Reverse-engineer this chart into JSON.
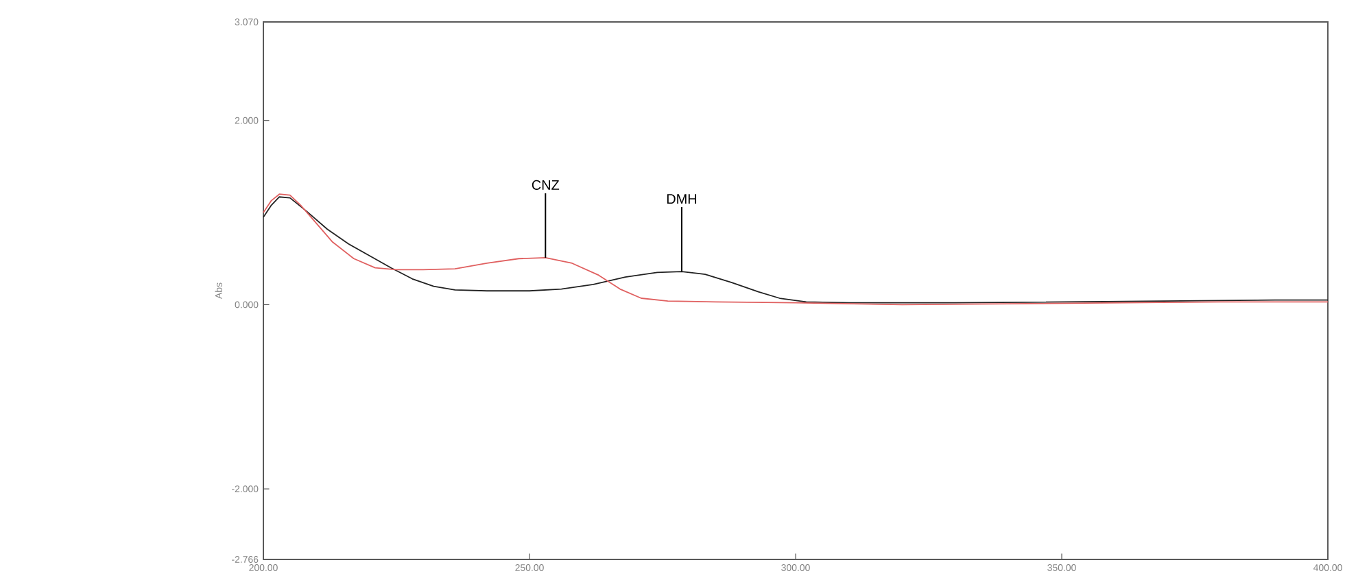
{
  "chart_data": {
    "type": "line",
    "ylabel": "Abs",
    "xlim": [
      200,
      400
    ],
    "ylim": [
      -2.766,
      3.07
    ],
    "xticks": [
      {
        "value": 200,
        "label": "200.00"
      },
      {
        "value": 250,
        "label": "250.00"
      },
      {
        "value": 300,
        "label": "300.00"
      },
      {
        "value": 350,
        "label": "350.00"
      },
      {
        "value": 400,
        "label": "400.00"
      }
    ],
    "yticks": [
      {
        "value": -2.766,
        "label": "-2.766"
      },
      {
        "value": -2,
        "label": "-2.000"
      },
      {
        "value": 0,
        "label": "0.000"
      },
      {
        "value": 2,
        "label": "2.000"
      },
      {
        "value": 3.07,
        "label": "3.070"
      }
    ],
    "grid": false,
    "marker": "none",
    "line_style": "solid",
    "series": [
      {
        "color": "#222222",
        "x": [
          200,
          201.5,
          203,
          205,
          208,
          212,
          216,
          220,
          224,
          228,
          232,
          236,
          242,
          250,
          256,
          262,
          268,
          274,
          278.6,
          283,
          288,
          293,
          297,
          302,
          310,
          330,
          350,
          370,
          390,
          400
        ],
        "values": [
          0.95,
          1.08,
          1.17,
          1.16,
          1.02,
          0.82,
          0.66,
          0.53,
          0.4,
          0.28,
          0.2,
          0.16,
          0.15,
          0.15,
          0.17,
          0.22,
          0.3,
          0.35,
          0.36,
          0.33,
          0.24,
          0.14,
          0.07,
          0.03,
          0.02,
          0.02,
          0.03,
          0.04,
          0.05,
          0.05
        ]
      },
      {
        "color": "#e06060",
        "x": [
          200,
          201.5,
          203,
          205,
          207,
          210,
          213,
          217,
          221,
          225,
          230,
          236,
          242,
          248,
          253,
          258,
          263,
          267,
          271,
          276,
          285,
          300,
          320,
          340,
          360,
          380,
          400
        ],
        "values": [
          1.0,
          1.13,
          1.2,
          1.19,
          1.08,
          0.88,
          0.68,
          0.5,
          0.4,
          0.38,
          0.38,
          0.39,
          0.45,
          0.5,
          0.51,
          0.45,
          0.32,
          0.17,
          0.07,
          0.04,
          0.03,
          0.02,
          0.0,
          0.01,
          0.02,
          0.03,
          0.03
        ]
      }
    ],
    "annotations": [
      {
        "text": "CNZ",
        "x": 253,
        "y": 0.51
      },
      {
        "text": "DMH",
        "x": 278.6,
        "y": 0.36
      }
    ]
  }
}
